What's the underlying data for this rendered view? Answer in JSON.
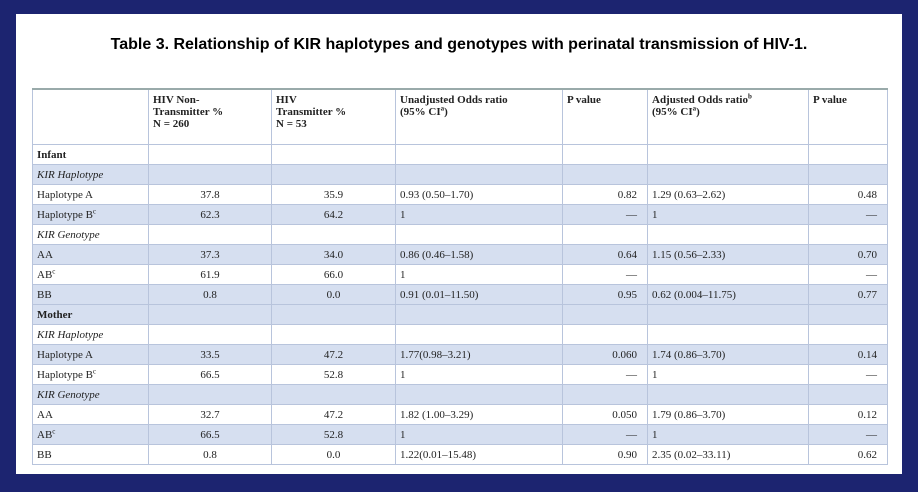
{
  "header": {
    "title": "Table 3. Relationship of KIR haplotypes and genotypes with perinatal transmission of HIV-1."
  },
  "table": {
    "columns": [
      null,
      [
        [
          "HIV Non-"
        ],
        [
          "Transmitter %"
        ],
        [
          "N = 260"
        ]
      ],
      [
        [
          "HIV"
        ],
        [
          "Transmitter %"
        ],
        [
          "N = 53"
        ]
      ],
      [
        [
          "Unadjusted Odds ratio"
        ],
        [
          "(95% CI",
          {
            "sup": "a"
          },
          ")"
        ]
      ],
      [
        [
          "P value"
        ]
      ],
      [
        [
          "Adjusted Odds ratio",
          {
            "sup": "b"
          }
        ],
        [
          "(95% CI",
          {
            "sup": "a"
          },
          ")"
        ]
      ],
      [
        [
          "P value"
        ]
      ]
    ],
    "rows": [
      {
        "label": "Infant",
        "style": "section"
      },
      {
        "label": "KIR Haplotype",
        "style": "group"
      },
      {
        "label": "Haplotype A",
        "cells": [
          "37.8",
          "35.9",
          "0.93 (0.50–1.70)",
          "0.82",
          "1.29 (0.63–2.62)",
          "0.48"
        ]
      },
      {
        "label": "Haplotype B",
        "sup": "c",
        "cells": [
          "62.3",
          "64.2",
          "1",
          "—",
          "1",
          "—"
        ]
      },
      {
        "label": "KIR Genotype",
        "style": "group"
      },
      {
        "label": "AA",
        "cells": [
          "37.3",
          "34.0",
          "0.86 (0.46–1.58)",
          "0.64",
          "1.15 (0.56–2.33)",
          "0.70"
        ]
      },
      {
        "label": "AB",
        "sup": "c",
        "cells": [
          "61.9",
          "66.0",
          "1",
          "—",
          null,
          "—"
        ]
      },
      {
        "label": "BB",
        "cells": [
          "0.8",
          "0.0",
          "0.91 (0.01–11.50)",
          "0.95",
          "0.62 (0.004–11.75)",
          "0.77"
        ]
      },
      {
        "label": "Mother",
        "style": "section"
      },
      {
        "label": "KIR Haplotype",
        "style": "group"
      },
      {
        "label": "Haplotype A",
        "cells": [
          "33.5",
          "47.2",
          "1.77(0.98–3.21)",
          "0.060",
          "1.74 (0.86–3.70)",
          "0.14"
        ]
      },
      {
        "label": "Haplotype B",
        "sup": "c",
        "cells": [
          "66.5",
          "52.8",
          "1",
          "—",
          "1",
          "—"
        ]
      },
      {
        "label": "KIR Genotype",
        "style": "group"
      },
      {
        "label": "AA",
        "cells": [
          "32.7",
          "47.2",
          "1.82 (1.00–3.29)",
          "0.050",
          "1.79 (0.86–3.70)",
          "0.12"
        ]
      },
      {
        "label": "AB",
        "sup": "c",
        "cells": [
          "66.5",
          "52.8",
          "1",
          "—",
          "1",
          "—"
        ]
      },
      {
        "label": "BB",
        "cells": [
          "0.8",
          "0.0",
          "1.22(0.01–15.48)",
          "0.90",
          "2.35 (0.02–33.11)",
          "0.62"
        ]
      }
    ]
  }
}
